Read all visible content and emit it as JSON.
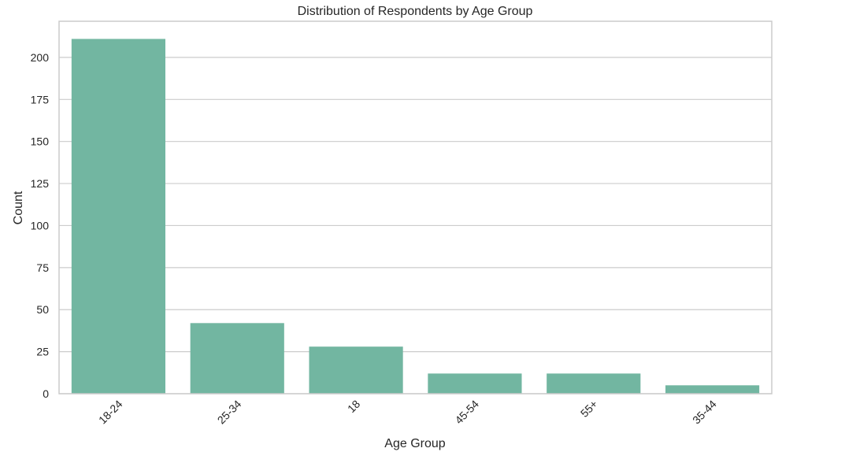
{
  "chart_data": {
    "type": "bar",
    "title": "Distribution of Respondents by Age Group",
    "xlabel": "Age Group",
    "ylabel": "Count",
    "categories": [
      "18-24",
      "25-34",
      "18",
      "45-54",
      "55+",
      "35-44"
    ],
    "values": [
      211,
      42,
      28,
      12,
      12,
      5
    ],
    "ylim": [
      0,
      221.5
    ],
    "yticks": [
      0,
      25,
      50,
      75,
      100,
      125,
      150,
      175,
      200
    ],
    "grid": true,
    "bar_color": "#72b6a1",
    "grid_color": "#cccccc",
    "frame_color": "#cccccc"
  }
}
